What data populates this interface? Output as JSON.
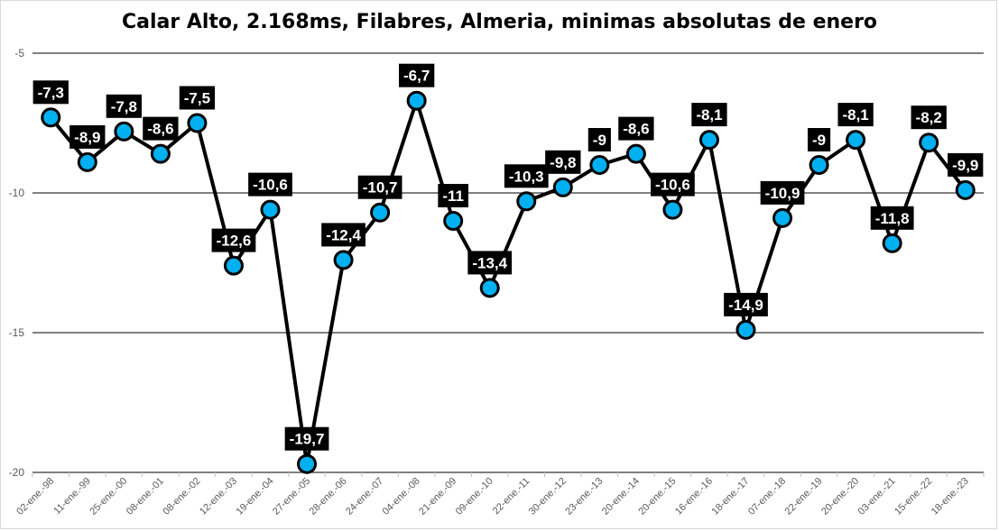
{
  "chart_data": {
    "type": "line",
    "title": "Calar Alto, 2.168ms, Filabres, Almeria, minimas absolutas de enero",
    "xlabel": "",
    "ylabel": "",
    "ylim": [
      -20,
      -5
    ],
    "yticks": [
      -5,
      -10,
      -15,
      -20
    ],
    "ytick_labels": [
      "-5",
      "-10",
      "-15",
      "-20"
    ],
    "grid": "horizontal",
    "categories": [
      "02-ene.-98",
      "11-ene.-99",
      "25-ene.-00",
      "08-ene.-01",
      "08-ene.-02",
      "12-ene.-03",
      "19-ene.-04",
      "27-ene.-05",
      "28-ene.-06",
      "24-ene.-07",
      "04-ene.-08",
      "21-ene.-09",
      "09-ene.-10",
      "22-ene.-11",
      "30-ene.-12",
      "23-ene.-13",
      "20-ene.-14",
      "20-ene.-15",
      "16-ene.-16",
      "18-ene.-17",
      "07-ene.-18",
      "22-ene.-19",
      "20-ene.-20",
      "03-ene.-21",
      "15-ene.-22",
      "18-ene.-23"
    ],
    "values": [
      -7.3,
      -8.9,
      -7.8,
      -8.6,
      -7.5,
      -12.6,
      -10.6,
      -19.7,
      -12.4,
      -10.7,
      -6.7,
      -11,
      -13.4,
      -10.3,
      -9.8,
      -9,
      -8.6,
      -10.6,
      -8.1,
      -14.9,
      -10.9,
      -9,
      -8.1,
      -11.8,
      -8.2,
      -9.9
    ],
    "data_labels": [
      "-7,3",
      "-8,9",
      "-7,8",
      "-8,6",
      "-7,5",
      "-12,6",
      "-10,6",
      "-19,7",
      "-12,4",
      "-10,7",
      "-6,7",
      "-11",
      "-13,4",
      "-10,3",
      "-9,8",
      "-9",
      "-8,6",
      "-10,6",
      "-8,1",
      "-14,9",
      "-10,9",
      "-9",
      "-8,1",
      "-11,8",
      "-8,2",
      "-9,9"
    ],
    "colors": {
      "line": "#000000",
      "marker_fill": "#00b0f0",
      "marker_stroke": "#000000",
      "label_bg": "#000000",
      "label_text": "#ffffff",
      "gridline": "#000000",
      "axis_text": "#595959"
    }
  }
}
